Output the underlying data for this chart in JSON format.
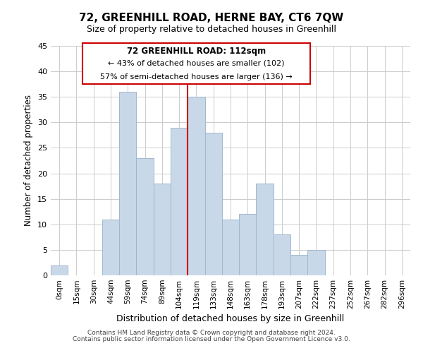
{
  "title": "72, GREENHILL ROAD, HERNE BAY, CT6 7QW",
  "subtitle": "Size of property relative to detached houses in Greenhill",
  "xlabel": "Distribution of detached houses by size in Greenhill",
  "ylabel": "Number of detached properties",
  "bar_labels": [
    "0sqm",
    "15sqm",
    "30sqm",
    "44sqm",
    "59sqm",
    "74sqm",
    "89sqm",
    "104sqm",
    "119sqm",
    "133sqm",
    "148sqm",
    "163sqm",
    "178sqm",
    "193sqm",
    "207sqm",
    "222sqm",
    "237sqm",
    "252sqm",
    "267sqm",
    "282sqm",
    "296sqm"
  ],
  "bar_values": [
    2,
    0,
    0,
    11,
    36,
    23,
    18,
    29,
    35,
    28,
    11,
    12,
    18,
    8,
    4,
    5,
    0,
    0,
    0,
    0,
    0
  ],
  "bar_color": "#c8d8e8",
  "bar_edge_color": "#a0b8cc",
  "vline_x": 7.5,
  "vline_color": "#cc0000",
  "ylim": [
    0,
    45
  ],
  "yticks": [
    0,
    5,
    10,
    15,
    20,
    25,
    30,
    35,
    40,
    45
  ],
  "annotation_title": "72 GREENHILL ROAD: 112sqm",
  "annotation_line1": "← 43% of detached houses are smaller (102)",
  "annotation_line2": "57% of semi-detached houses are larger (136) →",
  "annotation_box_color": "#ffffff",
  "annotation_box_edge": "#cc0000",
  "footer1": "Contains HM Land Registry data © Crown copyright and database right 2024.",
  "footer2": "Contains public sector information licensed under the Open Government Licence v3.0.",
  "background_color": "#ffffff",
  "grid_color": "#cccccc"
}
